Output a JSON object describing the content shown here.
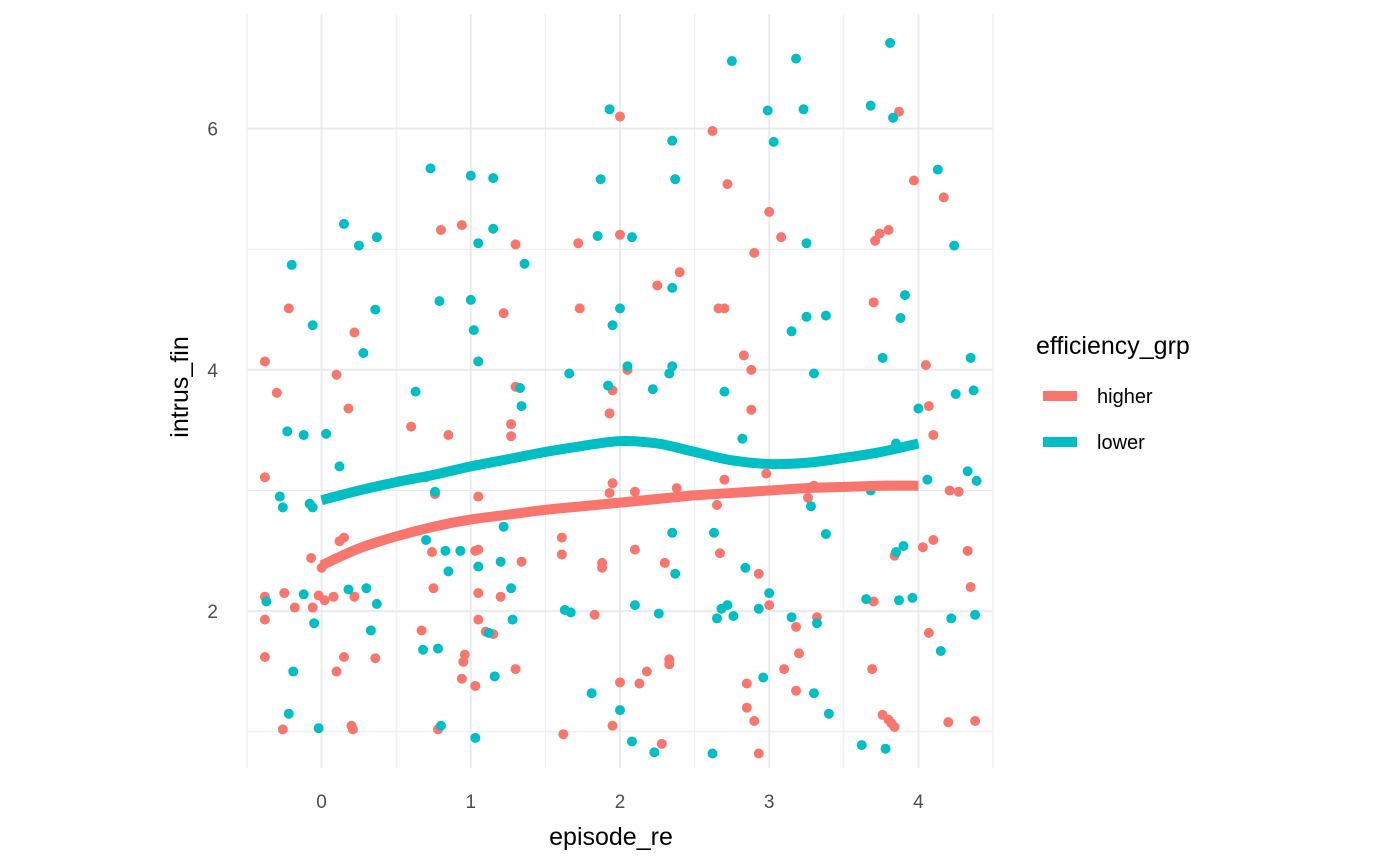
{
  "chart_data": {
    "type": "scatter",
    "title": "",
    "xlabel": "episode_re",
    "ylabel": "intrus_fin",
    "xlim": [
      -0.5,
      4.5
    ],
    "ylim": [
      0.7,
      6.95
    ],
    "x_ticks": [
      0,
      1,
      2,
      3,
      4
    ],
    "x_tick_labels": [
      "0",
      "1",
      "2",
      "3",
      "4"
    ],
    "y_ticks": [
      2,
      4,
      6
    ],
    "y_tick_labels": [
      "2",
      "4",
      "6"
    ],
    "grid": true,
    "legend": {
      "title": "efficiency_grp",
      "position": "right",
      "entries": [
        "higher",
        "lower"
      ]
    },
    "colors": {
      "higher": "#F8766D",
      "lower": "#00BFC4"
    },
    "series": [
      {
        "name": "higher",
        "color": "#F8766D",
        "points": [
          [
            -0.38,
            4.07
          ],
          [
            -0.3,
            3.81
          ],
          [
            -0.22,
            4.51
          ],
          [
            -0.38,
            3.11
          ],
          [
            -0.38,
            2.12
          ],
          [
            -0.25,
            2.15
          ],
          [
            -0.18,
            2.03
          ],
          [
            -0.38,
            1.93
          ],
          [
            -0.38,
            1.62
          ],
          [
            -0.26,
            1.02
          ],
          [
            0.1,
            3.96
          ],
          [
            0.18,
            3.68
          ],
          [
            0.22,
            4.31
          ],
          [
            -0.07,
            2.44
          ],
          [
            -0.06,
            2.03
          ],
          [
            0.0,
            2.36
          ],
          [
            0.02,
            2.09
          ],
          [
            0.08,
            2.12
          ],
          [
            0.12,
            2.58
          ],
          [
            0.15,
            2.61
          ],
          [
            0.22,
            2.12
          ],
          [
            -0.02,
            2.13
          ],
          [
            0.1,
            1.5
          ],
          [
            0.15,
            1.62
          ],
          [
            0.36,
            1.61
          ],
          [
            0.2,
            1.05
          ],
          [
            0.21,
            1.02
          ],
          [
            0.6,
            3.53
          ],
          [
            0.7,
            3.11
          ],
          [
            0.76,
            2.97
          ],
          [
            0.74,
            2.49
          ],
          [
            0.75,
            2.19
          ],
          [
            0.67,
            1.84
          ],
          [
            0.78,
            1.02
          ],
          [
            0.8,
            5.16
          ],
          [
            0.85,
            3.46
          ],
          [
            0.94,
            5.2
          ],
          [
            0.96,
            1.64
          ],
          [
            0.95,
            1.58
          ],
          [
            0.94,
            1.44
          ],
          [
            1.03,
            1.38
          ],
          [
            1.03,
            2.5
          ],
          [
            1.05,
            2.51
          ],
          [
            1.05,
            2.15
          ],
          [
            1.05,
            1.93
          ],
          [
            1.05,
            2.95
          ],
          [
            1.1,
            1.83
          ],
          [
            1.15,
            1.81
          ],
          [
            1.2,
            2.12
          ],
          [
            1.22,
            4.47
          ],
          [
            1.27,
            3.55
          ],
          [
            1.27,
            3.45
          ],
          [
            1.3,
            3.86
          ],
          [
            1.3,
            1.52
          ],
          [
            1.3,
            5.04
          ],
          [
            1.34,
            2.41
          ],
          [
            1.61,
            2.61
          ],
          [
            1.61,
            2.47
          ],
          [
            1.62,
            0.98
          ],
          [
            1.72,
            5.05
          ],
          [
            1.73,
            4.51
          ],
          [
            1.83,
            1.97
          ],
          [
            1.88,
            2.36
          ],
          [
            1.88,
            2.4
          ],
          [
            1.93,
            3.64
          ],
          [
            1.95,
            3.83
          ],
          [
            1.95,
            3.06
          ],
          [
            1.93,
            2.98
          ],
          [
            1.95,
            1.05
          ],
          [
            2.0,
            1.41
          ],
          [
            2.0,
            5.12
          ],
          [
            2.0,
            6.1
          ],
          [
            2.05,
            4.0
          ],
          [
            2.1,
            2.51
          ],
          [
            2.1,
            2.99
          ],
          [
            2.13,
            1.4
          ],
          [
            2.18,
            1.5
          ],
          [
            2.25,
            4.7
          ],
          [
            2.28,
            0.9
          ],
          [
            2.3,
            2.4
          ],
          [
            2.33,
            1.6
          ],
          [
            2.33,
            1.56
          ],
          [
            2.38,
            3.02
          ],
          [
            2.4,
            4.81
          ],
          [
            2.62,
            5.98
          ],
          [
            2.66,
            4.51
          ],
          [
            2.7,
            4.51
          ],
          [
            2.72,
            5.54
          ],
          [
            2.65,
            2.88
          ],
          [
            2.67,
            2.48
          ],
          [
            2.7,
            3.09
          ],
          [
            2.83,
            4.12
          ],
          [
            2.85,
            1.4
          ],
          [
            2.85,
            1.2
          ],
          [
            2.88,
            4.0
          ],
          [
            2.88,
            3.67
          ],
          [
            2.9,
            1.09
          ],
          [
            2.9,
            4.97
          ],
          [
            2.93,
            2.31
          ],
          [
            2.93,
            0.82
          ],
          [
            2.98,
            3.14
          ],
          [
            3.0,
            5.31
          ],
          [
            3.0,
            2.05
          ],
          [
            3.08,
            5.1
          ],
          [
            3.1,
            1.52
          ],
          [
            3.18,
            1.34
          ],
          [
            3.18,
            1.87
          ],
          [
            3.2,
            1.65
          ],
          [
            3.26,
            2.94
          ],
          [
            3.3,
            3.04
          ],
          [
            3.32,
            1.95
          ],
          [
            3.69,
            1.52
          ],
          [
            3.7,
            2.08
          ],
          [
            3.7,
            4.56
          ],
          [
            3.71,
            5.07
          ],
          [
            3.74,
            5.13
          ],
          [
            3.76,
            1.14
          ],
          [
            3.8,
            5.16
          ],
          [
            3.82,
            1.07
          ],
          [
            3.8,
            1.1
          ],
          [
            3.84,
            1.04
          ],
          [
            3.84,
            2.46
          ],
          [
            3.87,
            6.14
          ],
          [
            3.97,
            5.57
          ],
          [
            4.03,
            2.53
          ],
          [
            4.05,
            4.04
          ],
          [
            4.07,
            3.7
          ],
          [
            4.07,
            1.82
          ],
          [
            4.1,
            3.46
          ],
          [
            4.1,
            2.59
          ],
          [
            4.17,
            5.43
          ],
          [
            4.2,
            1.08
          ],
          [
            4.21,
            3.0
          ],
          [
            4.27,
            2.99
          ],
          [
            4.33,
            2.5
          ],
          [
            4.35,
            2.2
          ],
          [
            4.38,
            1.09
          ]
        ],
        "smooth": [
          [
            0.0,
            2.38
          ],
          [
            0.25,
            2.52
          ],
          [
            0.5,
            2.62
          ],
          [
            0.75,
            2.7
          ],
          [
            1.0,
            2.76
          ],
          [
            1.25,
            2.8
          ],
          [
            1.5,
            2.84
          ],
          [
            1.75,
            2.87
          ],
          [
            2.0,
            2.9
          ],
          [
            2.25,
            2.93
          ],
          [
            2.5,
            2.96
          ],
          [
            2.75,
            2.98
          ],
          [
            3.0,
            3.0
          ],
          [
            3.25,
            3.02
          ],
          [
            3.5,
            3.03
          ],
          [
            3.75,
            3.04
          ],
          [
            4.0,
            3.04
          ]
        ]
      },
      {
        "name": "lower",
        "color": "#00BFC4",
        "points": [
          [
            -0.37,
            2.08
          ],
          [
            -0.28,
            2.95
          ],
          [
            -0.26,
            2.86
          ],
          [
            -0.23,
            3.49
          ],
          [
            -0.2,
            4.87
          ],
          [
            -0.22,
            1.15
          ],
          [
            -0.19,
            1.5
          ],
          [
            -0.12,
            3.46
          ],
          [
            -0.12,
            2.14
          ],
          [
            -0.08,
            2.89
          ],
          [
            -0.06,
            2.86
          ],
          [
            -0.06,
            4.37
          ],
          [
            -0.05,
            1.9
          ],
          [
            -0.02,
            1.03
          ],
          [
            0.03,
            3.47
          ],
          [
            0.12,
            3.2
          ],
          [
            0.15,
            5.21
          ],
          [
            0.18,
            2.18
          ],
          [
            0.25,
            5.03
          ],
          [
            0.28,
            4.14
          ],
          [
            0.3,
            2.19
          ],
          [
            0.33,
            1.84
          ],
          [
            0.36,
            4.5
          ],
          [
            0.37,
            5.1
          ],
          [
            0.37,
            2.06
          ],
          [
            0.63,
            3.82
          ],
          [
            0.68,
            1.68
          ],
          [
            0.7,
            2.59
          ],
          [
            0.73,
            5.67
          ],
          [
            0.76,
            2.99
          ],
          [
            0.78,
            1.69
          ],
          [
            0.79,
            4.57
          ],
          [
            0.8,
            1.05
          ],
          [
            0.83,
            2.5
          ],
          [
            0.85,
            2.33
          ],
          [
            0.93,
            2.5
          ],
          [
            1.0,
            5.61
          ],
          [
            1.0,
            4.58
          ],
          [
            1.02,
            4.33
          ],
          [
            1.03,
            0.95
          ],
          [
            1.05,
            4.07
          ],
          [
            1.05,
            5.05
          ],
          [
            1.05,
            2.37
          ],
          [
            1.12,
            1.82
          ],
          [
            1.15,
            5.59
          ],
          [
            1.15,
            5.17
          ],
          [
            1.16,
            1.46
          ],
          [
            1.2,
            2.41
          ],
          [
            1.22,
            2.7
          ],
          [
            1.27,
            2.19
          ],
          [
            1.28,
            1.93
          ],
          [
            1.33,
            3.85
          ],
          [
            1.34,
            3.7
          ],
          [
            1.36,
            4.88
          ],
          [
            1.63,
            2.01
          ],
          [
            1.66,
            3.97
          ],
          [
            1.67,
            1.99
          ],
          [
            1.81,
            1.32
          ],
          [
            1.85,
            5.11
          ],
          [
            1.87,
            5.58
          ],
          [
            1.92,
            3.87
          ],
          [
            1.93,
            6.16
          ],
          [
            1.95,
            4.37
          ],
          [
            2.0,
            4.51
          ],
          [
            2.0,
            1.18
          ],
          [
            2.05,
            4.03
          ],
          [
            2.08,
            5.1
          ],
          [
            2.1,
            2.05
          ],
          [
            2.08,
            0.92
          ],
          [
            2.22,
            3.84
          ],
          [
            2.23,
            0.83
          ],
          [
            2.26,
            1.98
          ],
          [
            2.33,
            3.97
          ],
          [
            2.35,
            5.9
          ],
          [
            2.35,
            4.68
          ],
          [
            2.35,
            4.03
          ],
          [
            2.37,
            5.58
          ],
          [
            2.35,
            2.65
          ],
          [
            2.37,
            2.31
          ],
          [
            2.62,
            0.82
          ],
          [
            2.63,
            2.65
          ],
          [
            2.65,
            1.94
          ],
          [
            2.68,
            2.02
          ],
          [
            2.7,
            3.82
          ],
          [
            2.72,
            2.05
          ],
          [
            2.75,
            6.56
          ],
          [
            2.76,
            1.96
          ],
          [
            2.82,
            3.43
          ],
          [
            2.84,
            2.36
          ],
          [
            2.93,
            2.02
          ],
          [
            2.96,
            1.45
          ],
          [
            3.0,
            2.15
          ],
          [
            2.99,
            6.15
          ],
          [
            3.03,
            5.89
          ],
          [
            3.15,
            4.32
          ],
          [
            3.15,
            1.95
          ],
          [
            3.18,
            6.58
          ],
          [
            3.23,
            6.16
          ],
          [
            3.25,
            5.05
          ],
          [
            3.25,
            4.44
          ],
          [
            3.28,
            2.87
          ],
          [
            3.3,
            1.32
          ],
          [
            3.3,
            3.97
          ],
          [
            3.32,
            1.9
          ],
          [
            3.38,
            4.45
          ],
          [
            3.38,
            2.64
          ],
          [
            3.4,
            1.15
          ],
          [
            3.62,
            0.89
          ],
          [
            3.65,
            2.1
          ],
          [
            3.68,
            6.19
          ],
          [
            3.68,
            3.0
          ],
          [
            3.76,
            4.1
          ],
          [
            3.78,
            0.86
          ],
          [
            3.81,
            6.71
          ],
          [
            3.83,
            6.09
          ],
          [
            3.85,
            3.39
          ],
          [
            3.85,
            2.49
          ],
          [
            3.87,
            2.09
          ],
          [
            3.88,
            4.43
          ],
          [
            3.9,
            2.54
          ],
          [
            3.91,
            4.62
          ],
          [
            3.96,
            2.11
          ],
          [
            4.0,
            3.68
          ],
          [
            4.06,
            3.09
          ],
          [
            4.13,
            5.66
          ],
          [
            4.15,
            1.67
          ],
          [
            4.22,
            1.94
          ],
          [
            4.24,
            5.03
          ],
          [
            4.25,
            3.8
          ],
          [
            4.33,
            3.16
          ],
          [
            4.35,
            4.1
          ],
          [
            4.37,
            3.83
          ],
          [
            4.38,
            1.97
          ],
          [
            4.39,
            3.08
          ]
        ],
        "smooth": [
          [
            0.0,
            2.92
          ],
          [
            0.25,
            3.0
          ],
          [
            0.5,
            3.07
          ],
          [
            0.75,
            3.13
          ],
          [
            1.0,
            3.2
          ],
          [
            1.25,
            3.26
          ],
          [
            1.5,
            3.32
          ],
          [
            1.75,
            3.37
          ],
          [
            2.0,
            3.41
          ],
          [
            2.25,
            3.39
          ],
          [
            2.5,
            3.32
          ],
          [
            2.75,
            3.25
          ],
          [
            3.0,
            3.22
          ],
          [
            3.25,
            3.23
          ],
          [
            3.5,
            3.27
          ],
          [
            3.75,
            3.32
          ],
          [
            4.0,
            3.39
          ]
        ]
      }
    ]
  }
}
